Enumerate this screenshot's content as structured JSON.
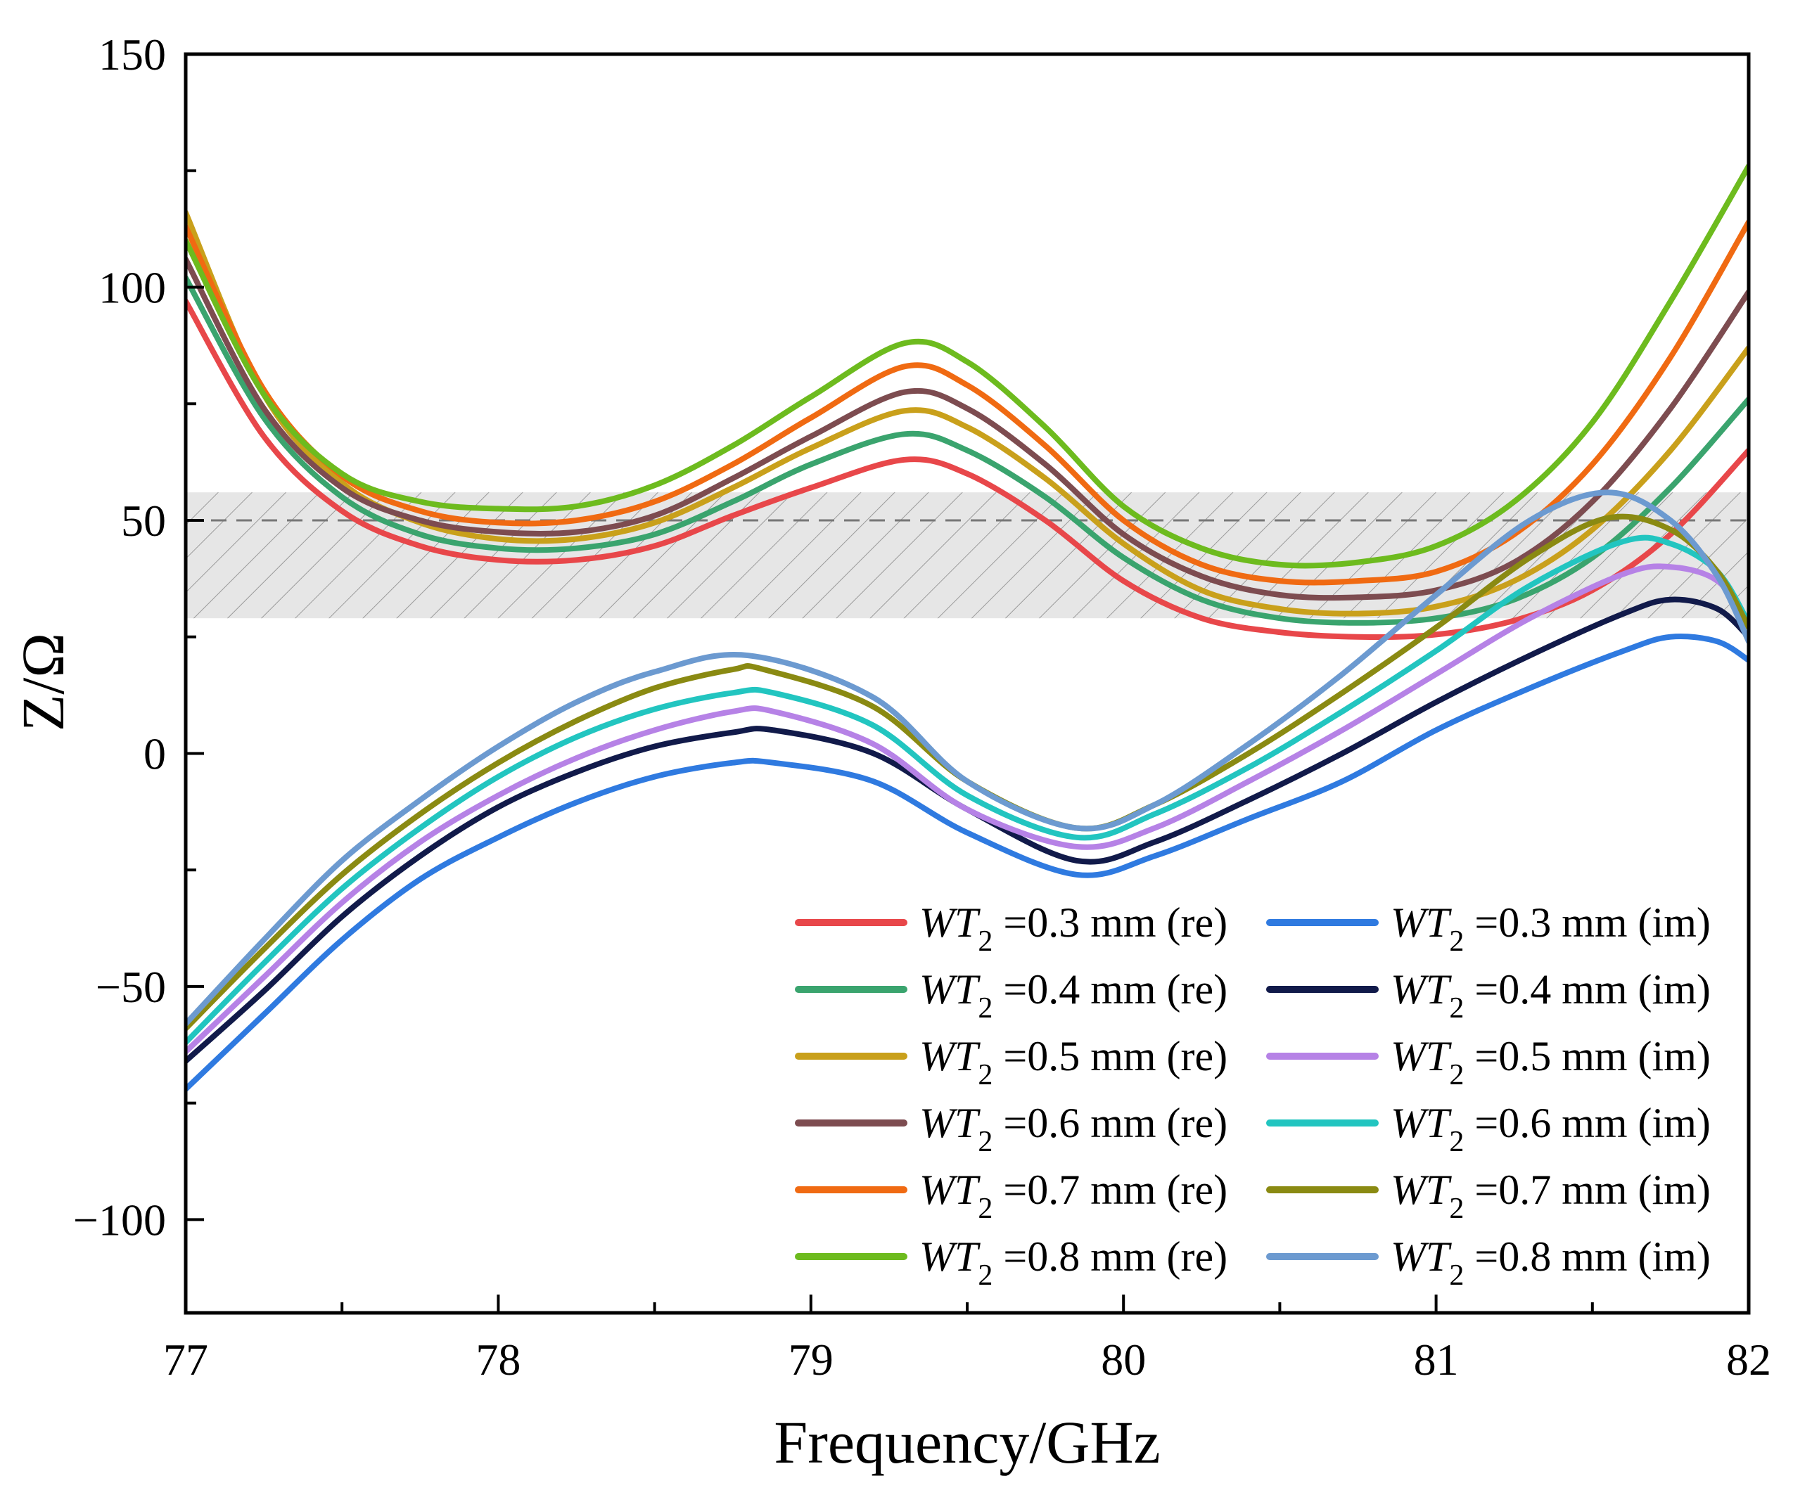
{
  "chart_data": {
    "type": "line",
    "xlabel": "Frequency/GHz",
    "ylabel": "Z/Ω",
    "xlim": [
      77,
      82
    ],
    "ylim": [
      -120,
      150
    ],
    "xticks": [
      77,
      78,
      79,
      80,
      81,
      82
    ],
    "xtick_labels": [
      "77",
      "78",
      "79",
      "80",
      "81",
      "82"
    ],
    "yticks": [
      150,
      100,
      50,
      0,
      -50,
      -100
    ],
    "ytick_labels": [
      "150",
      "100",
      "50",
      "0",
      "−50",
      "−100"
    ],
    "reference_line": {
      "y": 50,
      "style": "dashed",
      "color": "#777777"
    },
    "shaded_band": {
      "y0": 29,
      "y1": 56,
      "color": "#e6e6e6",
      "hatch": true
    },
    "grid": false,
    "legend": {
      "position": "bottom-right",
      "columns": 2
    },
    "series": [
      {
        "name": "WT₂ =0.3 mm (re)",
        "label_main": "WT",
        "label_sub": "2",
        "label_rest": " =0.3 mm (re)",
        "color": "#e8474a",
        "x": [
          77,
          77.25,
          77.5,
          77.75,
          78,
          78.25,
          78.5,
          78.75,
          79,
          79.3,
          79.5,
          79.75,
          80,
          80.25,
          80.5,
          80.75,
          81,
          81.25,
          81.5,
          81.75,
          82
        ],
        "y": [
          97,
          68,
          52,
          44.5,
          41.5,
          41.5,
          44.5,
          51,
          57,
          63,
          60,
          50,
          37,
          29,
          26,
          25,
          25.5,
          28.5,
          35,
          47,
          65
        ]
      },
      {
        "name": "WT₂ =0.4 mm (re)",
        "label_main": "WT",
        "label_sub": "2",
        "label_rest": " =0.4 mm (re)",
        "color": "#3aa46e",
        "x": [
          77,
          77.25,
          77.5,
          77.75,
          78,
          78.25,
          78.5,
          78.75,
          79,
          79.3,
          79.5,
          79.75,
          80,
          80.25,
          80.5,
          80.75,
          81,
          81.25,
          81.5,
          81.75,
          82
        ],
        "y": [
          102,
          72,
          55,
          47,
          44,
          44,
          47,
          54,
          62,
          68.5,
          65,
          55,
          42,
          33,
          29,
          28,
          29,
          33,
          42,
          57,
          76
        ]
      },
      {
        "name": "WT₂ =0.5 mm (re)",
        "label_main": "WT",
        "label_sub": "2",
        "label_rest": " =0.5 mm (re)",
        "color": "#c9a01b",
        "x": [
          77,
          77.25,
          77.5,
          77.75,
          78,
          78.25,
          78.5,
          78.75,
          79,
          79.3,
          79.5,
          79.75,
          80,
          80.25,
          80.5,
          80.75,
          81,
          81.25,
          81.5,
          81.75,
          82
        ],
        "y": [
          116,
          77,
          58,
          49.5,
          46,
          46,
          49.5,
          57,
          65.5,
          73.5,
          70,
          59,
          45,
          35,
          31,
          30,
          31.5,
          37,
          48,
          65,
          87
        ]
      },
      {
        "name": "WT₂ =0.6 mm (re)",
        "label_main": "WT",
        "label_sub": "2",
        "label_rest": " =0.6 mm (re)",
        "color": "#7d4c50",
        "x": [
          77,
          77.25,
          77.5,
          77.75,
          78,
          78.25,
          78.5,
          78.75,
          79,
          79.3,
          79.5,
          79.75,
          80,
          80.25,
          80.5,
          80.75,
          81,
          81.25,
          81.5,
          81.75,
          82
        ],
        "y": [
          106,
          74,
          57,
          50,
          47.5,
          47.5,
          51,
          59,
          68,
          77.5,
          74,
          62,
          47,
          38,
          34,
          33.5,
          35,
          41,
          54,
          74,
          99
        ]
      },
      {
        "name": "WT₂ =0.7 mm (re)",
        "label_main": "WT",
        "label_sub": "2",
        "label_rest": " =0.7 mm (re)",
        "color": "#f06a12",
        "x": [
          77,
          77.25,
          77.5,
          77.75,
          78,
          78.25,
          78.5,
          78.75,
          79,
          79.3,
          79.5,
          79.75,
          80,
          80.25,
          80.5,
          80.75,
          81,
          81.25,
          81.5,
          81.75,
          82
        ],
        "y": [
          113,
          78,
          59.5,
          52,
          49.5,
          50,
          54,
          62,
          72,
          83,
          79,
          66,
          50,
          40.5,
          37,
          37,
          39,
          47,
          62,
          85,
          114
        ]
      },
      {
        "name": "WT₂ =0.8 mm (re)",
        "label_main": "WT",
        "label_sub": "2",
        "label_rest": " =0.8 mm (re)",
        "color": "#6dbb1e",
        "x": [
          77,
          77.25,
          77.5,
          77.75,
          78,
          78.25,
          78.5,
          78.75,
          79,
          79.3,
          79.5,
          79.75,
          80,
          80.25,
          80.5,
          80.75,
          81,
          81.25,
          81.5,
          81.75,
          82
        ],
        "y": [
          110,
          77,
          60,
          54,
          52.5,
          53,
          57.5,
          66,
          76.5,
          88,
          84,
          70,
          53,
          44,
          40.5,
          41,
          44.5,
          54,
          71,
          97,
          126
        ]
      },
      {
        "name": "WT₂ =0.3 mm (im)",
        "label_main": "WT",
        "label_sub": "2",
        "label_rest": " =0.3 mm (im)",
        "color": "#2f7ae0",
        "x": [
          77,
          77.25,
          77.5,
          77.75,
          78,
          78.25,
          78.5,
          78.75,
          78.88,
          79.2,
          79.5,
          79.85,
          80.1,
          80.4,
          80.7,
          81,
          81.3,
          81.6,
          81.75,
          81.9,
          82
        ],
        "y": [
          -72,
          -56,
          -40,
          -27,
          -18,
          -10.5,
          -5,
          -2,
          -2,
          -6,
          -17,
          -26,
          -22,
          -14,
          -6,
          5,
          14,
          22,
          25,
          24,
          20
        ]
      },
      {
        "name": "WT₂ =0.4 mm (im)",
        "label_main": "WT",
        "label_sub": "2",
        "label_rest": " =0.4 mm (im)",
        "color": "#111a4a",
        "x": [
          77,
          77.25,
          77.5,
          77.75,
          78,
          78.25,
          78.5,
          78.75,
          78.88,
          79.2,
          79.5,
          79.85,
          80.1,
          80.4,
          80.7,
          81,
          81.3,
          81.6,
          81.75,
          81.9,
          82
        ],
        "y": [
          -66,
          -51,
          -35,
          -22,
          -11.5,
          -4,
          1.5,
          4.5,
          5,
          0,
          -12,
          -23,
          -19,
          -10,
          0,
          11,
          21,
          30,
          33,
          31,
          25
        ]
      },
      {
        "name": "WT₂ =0.5 mm (im)",
        "label_main": "WT",
        "label_sub": "2",
        "label_rest": " =0.5 mm (im)",
        "color": "#b682e6",
        "x": [
          77,
          77.25,
          77.5,
          77.75,
          78,
          78.25,
          78.5,
          78.75,
          78.88,
          79.2,
          79.5,
          79.85,
          80.1,
          80.4,
          80.7,
          81,
          81.3,
          81.6,
          81.75,
          81.9,
          82
        ],
        "y": [
          -64,
          -48,
          -32,
          -19,
          -9,
          -1,
          5,
          9,
          9,
          2,
          -12,
          -20,
          -16,
          -6,
          5,
          17,
          29,
          38.5,
          40,
          37,
          28
        ]
      },
      {
        "name": "WT₂ =0.6 mm (im)",
        "label_main": "WT",
        "label_sub": "2",
        "label_rest": " =0.6 mm (im)",
        "color": "#22c5c0",
        "x": [
          77,
          77.25,
          77.5,
          77.75,
          78,
          78.25,
          78.5,
          78.75,
          78.88,
          79.2,
          79.5,
          79.85,
          80.1,
          80.4,
          80.7,
          81,
          81.3,
          81.6,
          81.75,
          81.9,
          82
        ],
        "y": [
          -62,
          -45,
          -29,
          -16,
          -5,
          3.5,
          9.5,
          13,
          13,
          6,
          -9,
          -18,
          -13,
          -3,
          9,
          22,
          36,
          45.5,
          45,
          39,
          28
        ]
      },
      {
        "name": "WT₂ =0.7 mm (im)",
        "label_main": "WT",
        "label_sub": "2",
        "label_rest": " =0.7 mm (im)",
        "color": "#8a8a12",
        "x": [
          77,
          77.25,
          77.5,
          77.75,
          78,
          78.25,
          78.5,
          78.75,
          78.85,
          79.2,
          79.5,
          79.85,
          80.1,
          80.4,
          80.7,
          81,
          81.3,
          81.55,
          81.75,
          81.9,
          82
        ],
        "y": [
          -59,
          -42,
          -26,
          -13,
          -2,
          7,
          14,
          18,
          18,
          10,
          -6,
          -16,
          -11,
          0,
          13,
          27,
          42,
          50.5,
          48,
          39,
          27
        ]
      },
      {
        "name": "WT₂ =0.8 mm (im)",
        "label_main": "WT",
        "label_sub": "2",
        "label_rest": " =0.8 mm (im)",
        "color": "#6c9ad0",
        "x": [
          77,
          77.25,
          77.5,
          77.75,
          78,
          78.25,
          78.5,
          78.8,
          79.2,
          79.5,
          79.85,
          80.1,
          80.4,
          80.7,
          81,
          81.3,
          81.55,
          81.75,
          81.9,
          82
        ],
        "y": [
          -58,
          -40,
          -23,
          -10,
          1.5,
          11,
          17.5,
          21,
          12,
          -6,
          -16,
          -11,
          2,
          17,
          34,
          50,
          56,
          50,
          38,
          24
        ]
      }
    ]
  }
}
